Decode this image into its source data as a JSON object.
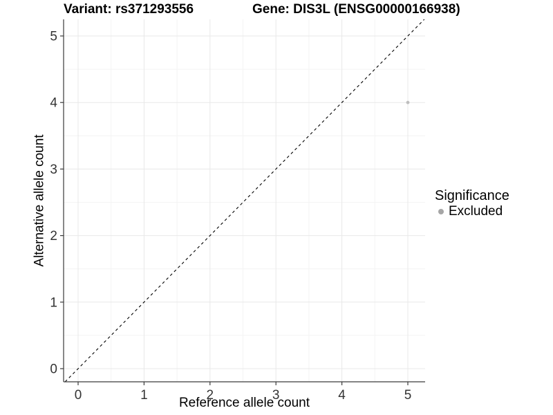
{
  "titles": {
    "variant": "Variant: rs371293556",
    "gene": "Gene: DIS3L (ENSG00000166938)"
  },
  "legend": {
    "title": "Significance",
    "items": [
      {
        "label": "Excluded",
        "color": "#a6a6a6"
      }
    ]
  },
  "chart_data": {
    "type": "scatter",
    "title": "Variant: rs371293556 — Gene: DIS3L (ENSG00000166938)",
    "xlabel": "Reference allele count",
    "ylabel": "Alternative allele count",
    "xlim": [
      -0.25,
      5.25
    ],
    "ylim": [
      -0.25,
      5.25
    ],
    "x_ticks": [
      0,
      1,
      2,
      3,
      4,
      5
    ],
    "y_ticks": [
      0,
      1,
      2,
      3,
      4,
      5
    ],
    "x_minor_ticks": [
      0.5,
      1.5,
      2.5,
      3.5,
      4.5
    ],
    "y_minor_ticks": [
      0.5,
      1.5,
      2.5,
      3.5,
      4.5
    ],
    "grid": true,
    "legend_position": "right",
    "series": [
      {
        "name": "Excluded",
        "color": "#bebebe",
        "points": [
          {
            "x": 5,
            "y": 4
          }
        ]
      }
    ],
    "reference_line": {
      "type": "identity y=x",
      "style": "dashed"
    },
    "colors": {
      "grid_major": "#e8e8e8",
      "grid_minor": "#f4f4f4",
      "axis": "#3a3a3a",
      "tick_label": "#333333",
      "reference_line": "#000000",
      "background": "#ffffff"
    }
  }
}
